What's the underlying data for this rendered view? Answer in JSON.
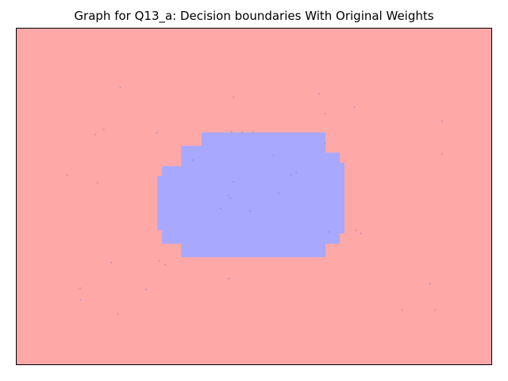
{
  "chart_data": {
    "type": "heatmap",
    "title": "Graph for Q13_a: Decision boundaries With Original Weights",
    "xlabel": "",
    "ylabel": "",
    "x_ticks": [],
    "y_ticks": [],
    "grid": false,
    "legend": "none",
    "colors": {
      "background_class": "#ffa8a8",
      "region_class": "#a8a8ff",
      "axes_frame": "#000000",
      "scatter_points": "#8080c0"
    },
    "classes": [
      {
        "class": 0,
        "color": "#ffa8a8"
      },
      {
        "class": 1,
        "color": "#a8a8ff"
      }
    ],
    "region_of_class_1_stepped_outline_fraction_of_axes": [
      [
        0.39,
        0.31
      ],
      [
        0.65,
        0.31
      ],
      [
        0.65,
        0.37
      ],
      [
        0.68,
        0.37
      ],
      [
        0.68,
        0.4
      ],
      [
        0.69,
        0.4
      ],
      [
        0.69,
        0.61
      ],
      [
        0.68,
        0.61
      ],
      [
        0.68,
        0.64
      ],
      [
        0.65,
        0.64
      ],
      [
        0.65,
        0.68
      ],
      [
        0.347,
        0.68
      ],
      [
        0.347,
        0.64
      ],
      [
        0.307,
        0.64
      ],
      [
        0.307,
        0.6
      ],
      [
        0.297,
        0.6
      ],
      [
        0.297,
        0.44
      ],
      [
        0.307,
        0.44
      ],
      [
        0.307,
        0.41
      ],
      [
        0.347,
        0.41
      ],
      [
        0.347,
        0.35
      ],
      [
        0.39,
        0.35
      ]
    ]
  }
}
